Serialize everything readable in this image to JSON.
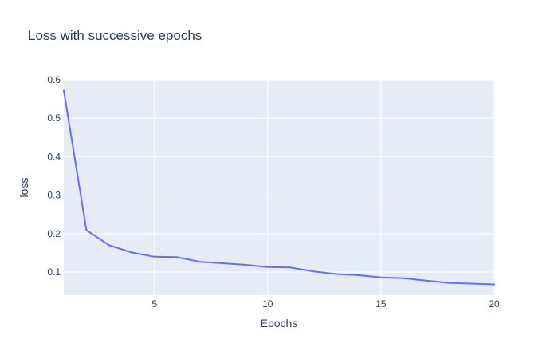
{
  "chart_data": {
    "type": "line",
    "title": "Loss with successive epochs",
    "xlabel": "Epochs",
    "ylabel": "loss",
    "xlim": [
      1,
      20
    ],
    "ylim": [
      0.04,
      0.6
    ],
    "x_ticks": [
      5,
      10,
      15,
      20
    ],
    "y_ticks": [
      0.1,
      0.2,
      0.3,
      0.4,
      0.5,
      0.6
    ],
    "grid": true,
    "series": [
      {
        "color": "#636efa",
        "x": [
          1,
          2,
          3,
          4,
          5,
          6,
          7,
          8,
          9,
          10,
          11,
          12,
          13,
          14,
          15,
          16,
          17,
          18,
          19,
          20
        ],
        "y": [
          0.572,
          0.209,
          0.17,
          0.151,
          0.14,
          0.139,
          0.127,
          0.123,
          0.119,
          0.113,
          0.112,
          0.102,
          0.095,
          0.092,
          0.086,
          0.084,
          0.078,
          0.072,
          0.07,
          0.068
        ]
      }
    ]
  },
  "colors": {
    "plot_background": "#e5ecf6",
    "grid": "#ffffff",
    "text": "#2a3f5f"
  }
}
